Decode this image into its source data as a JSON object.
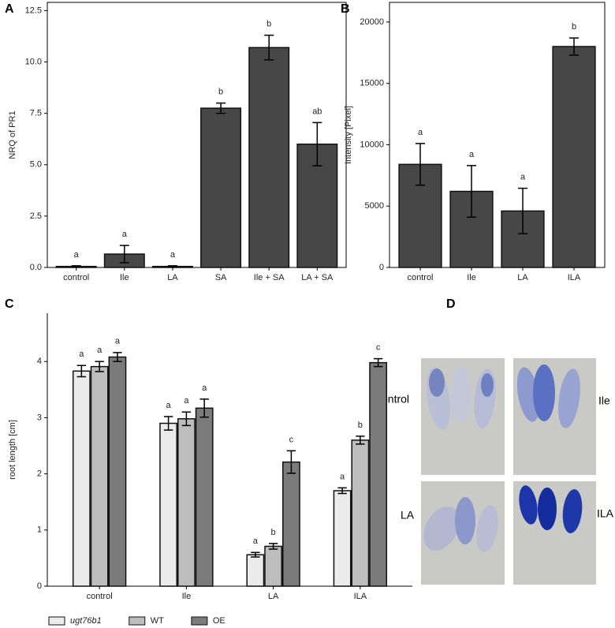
{
  "chart_data": [
    {
      "panel_label": "A",
      "type": "bar",
      "y_label": "NRQ of PR1",
      "categories": [
        "control",
        "Ile",
        "LA",
        "SA",
        "Ile + SA",
        "LA + SA"
      ],
      "values": [
        0.05,
        0.65,
        0.05,
        7.75,
        10.7,
        6.0
      ],
      "errors": [
        0.03,
        0.42,
        0.03,
        0.25,
        0.6,
        1.05
      ],
      "annotations": [
        "a",
        "a",
        "a",
        "b",
        "b",
        "ab"
      ],
      "color": "#474747",
      "ylim": [
        0,
        12.9
      ],
      "yticks": [
        {
          "value": 0,
          "label": "0.0"
        },
        2.5,
        {
          "value": 5,
          "label": "5.0"
        },
        7.5,
        {
          "value": 10,
          "label": "10.0"
        },
        12.5
      ]
    },
    {
      "panel_label": "B",
      "type": "bar",
      "y_label": "Intensity [Pixel]",
      "categories": [
        "control",
        "Ile",
        "LA",
        "ILA"
      ],
      "values": [
        8400,
        6200,
        4600,
        18000
      ],
      "errors": [
        1700,
        2100,
        1850,
        700
      ],
      "annotations": [
        "a",
        "a",
        "a",
        "b"
      ],
      "color": "#474747",
      "ylim": [
        0,
        21600
      ],
      "yticks": [
        0,
        5000,
        10000,
        15000,
        20000
      ]
    },
    {
      "panel_label": "C",
      "type": "bar",
      "y_label": "root length [cm]",
      "categories": [
        "control",
        "Ile",
        "LA",
        "ILA"
      ],
      "series": [
        {
          "name": "ugt76b1",
          "color": "#ebebeb",
          "values": [
            3.83,
            2.9,
            0.56,
            1.7
          ],
          "errors": [
            0.1,
            0.12,
            0.04,
            0.05
          ],
          "annotations": [
            "a",
            "a",
            "a",
            "a"
          ]
        },
        {
          "name": "WT",
          "color": "#bdbdbd",
          "values": [
            3.91,
            2.98,
            0.71,
            2.6
          ],
          "errors": [
            0.09,
            0.12,
            0.05,
            0.07
          ],
          "annotations": [
            "a",
            "a",
            "b",
            "b"
          ]
        },
        {
          "name": "OE",
          "color": "#7b7b7b",
          "values": [
            4.08,
            3.17,
            2.21,
            3.98
          ],
          "errors": [
            0.08,
            0.16,
            0.2,
            0.07
          ],
          "annotations": [
            "a",
            "a",
            "c",
            "c"
          ]
        }
      ],
      "legend": "bottom",
      "ylim": [
        0,
        4.86
      ],
      "yticks": [
        0,
        1,
        2,
        3,
        4
      ]
    }
  ],
  "panel_d": {
    "panel_label": "D",
    "labels": [
      "control",
      "Ile",
      "LA",
      "ILA"
    ]
  }
}
